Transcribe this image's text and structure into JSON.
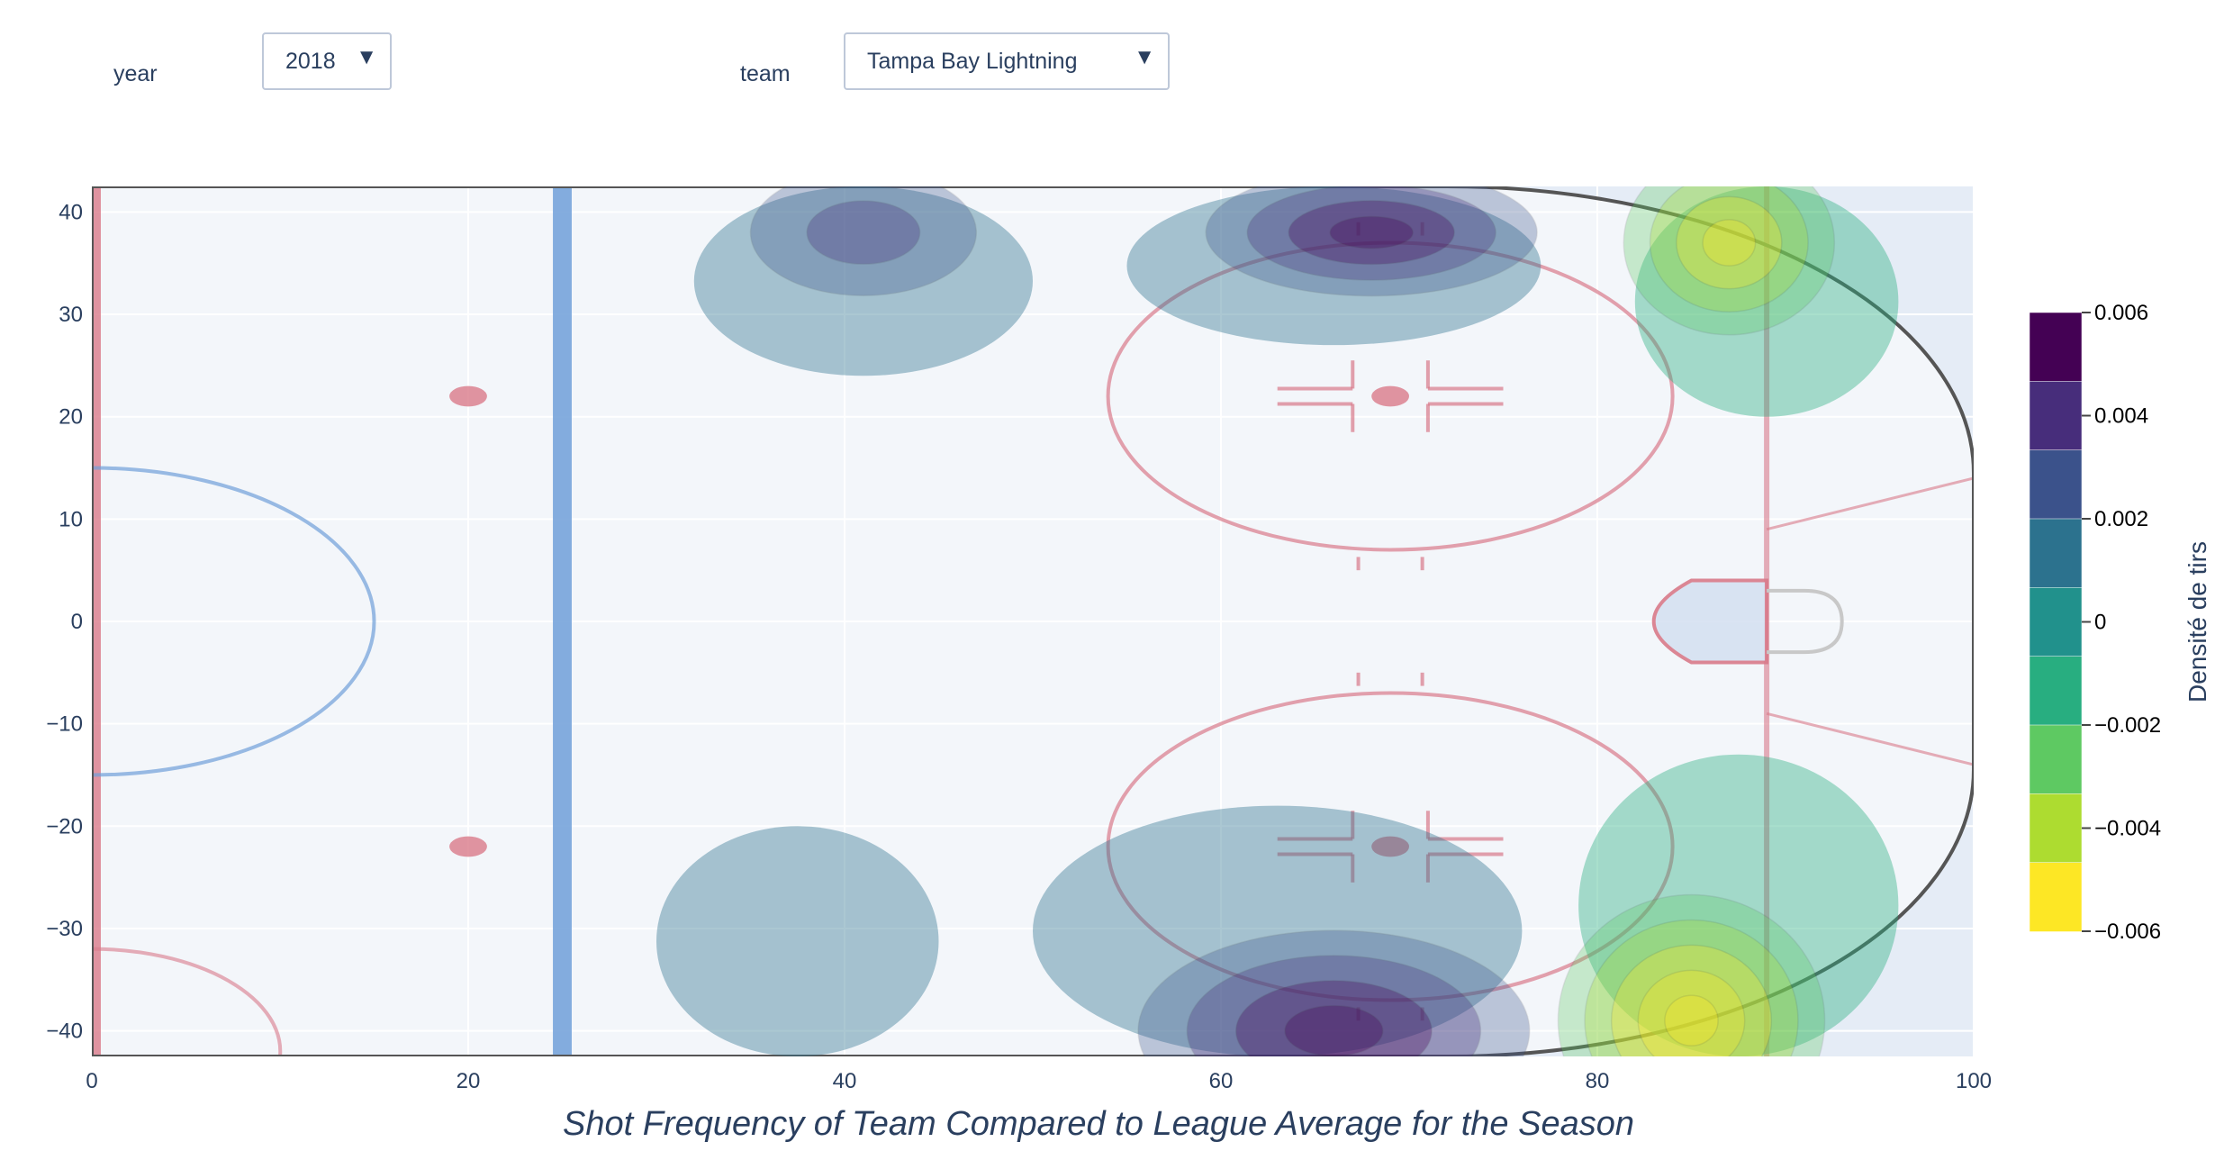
{
  "controls": {
    "year_label": "year",
    "year_value": "2018",
    "team_label": "team",
    "team_value": "Tampa Bay Lightning",
    "caret_icon": "▼"
  },
  "colors": {
    "plot_bg": "#e5ecf6",
    "rink_ice": "#f3f6fa",
    "grid": "#ffffff",
    "red_line": "#d97a8a",
    "blue_line": "#6f9fd8",
    "crease": "#d6e2f2"
  },
  "chart_data": {
    "type": "heatmap",
    "subtype": "contour",
    "title": "Shot Frequency of Team Compared to League Average for the Season",
    "xlabel": "",
    "ylabel": "",
    "xlim": [
      0,
      100
    ],
    "ylim": [
      -42.5,
      42.5
    ],
    "x_ticks": [
      0,
      20,
      40,
      60,
      80,
      100
    ],
    "y_ticks": [
      40,
      30,
      20,
      10,
      0,
      -10,
      -20,
      -30,
      -40
    ],
    "colorbar": {
      "title": "Densité de tirs",
      "range": [
        -0.006,
        0.006
      ],
      "ticks": [
        0.006,
        0.004,
        0.002,
        0,
        -0.002,
        -0.004,
        -0.006
      ],
      "tick_labels": [
        "0.006",
        "0.004",
        "0.002",
        "0",
        "−0.002",
        "−0.004",
        "−0.006"
      ],
      "colorscale": [
        "#440154",
        "#472d7b",
        "#3b528b",
        "#2c728e",
        "#21918c",
        "#28ae80",
        "#5ec962",
        "#addc30",
        "#fde725"
      ]
    },
    "regions": [
      {
        "name": "left-slot-high",
        "x": [
          32,
          50
        ],
        "y": [
          24,
          42.5
        ],
        "level": 0.0015,
        "peaks": [
          {
            "x": 41,
            "y": 38,
            "v": 0.002
          }
        ]
      },
      {
        "name": "right-circle-high",
        "x": [
          55,
          77
        ],
        "y": [
          27,
          42.5
        ],
        "level": 0.0015,
        "peaks": [
          {
            "x": 68,
            "y": 38,
            "v": 0.0035
          }
        ]
      },
      {
        "name": "left-point-low",
        "x": [
          30,
          45
        ],
        "y": [
          -42.5,
          -20
        ],
        "level": 0.0015,
        "peaks": []
      },
      {
        "name": "right-circle-low",
        "x": [
          50,
          76
        ],
        "y": [
          -42.5,
          -18
        ],
        "level": 0.0015,
        "peaks": [
          {
            "x": 66,
            "y": -40,
            "v": 0.004
          }
        ]
      },
      {
        "name": "net-front-high",
        "x": [
          82,
          96
        ],
        "y": [
          20,
          42.5
        ],
        "level": -0.0015,
        "peaks": [
          {
            "x": 87,
            "y": 37,
            "v": -0.004
          }
        ]
      },
      {
        "name": "net-front-low",
        "x": [
          79,
          96
        ],
        "y": [
          -42.5,
          -13
        ],
        "level": -0.0015,
        "peaks": [
          {
            "x": 85,
            "y": -39,
            "v": -0.005
          }
        ]
      }
    ]
  }
}
